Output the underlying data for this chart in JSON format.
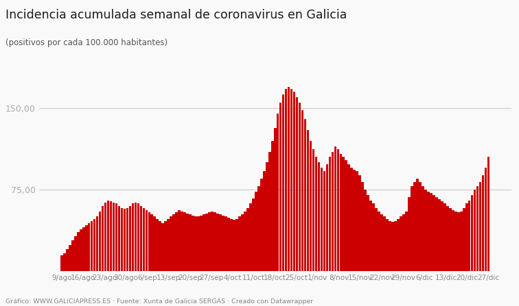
{
  "title": "Incidencia acumulada semanal de coronavirus en Galicia",
  "subtitle": "(positivos por cada 100.000 habitantes)",
  "footer": "Gráfico: WWW.GALICIAPRESS.ES · Fuente: Xunta de Galicia SERGAS · Creado con Datawrapper",
  "bar_color": "#cc0000",
  "background_color": "#f9f9f9",
  "ylim": [
    0,
    185
  ],
  "yticks": [
    75.0,
    150.0
  ],
  "tick_labels": [
    "9/ago",
    "16/ago",
    "23/ago",
    "30/ago",
    "6/sep",
    "13/sep",
    "20/sep",
    "27/sep",
    "4/oct",
    "11/oct",
    "18/oct",
    "25/oct",
    "1/nov",
    "8/nov",
    "15/nov",
    "22/nov",
    "29/nov",
    "6/dic",
    "13/dic",
    "20/dic",
    "27/dic"
  ],
  "values": [
    14,
    16,
    20,
    24,
    28,
    32,
    36,
    38,
    40,
    42,
    44,
    46,
    48,
    50,
    55,
    60,
    63,
    65,
    64,
    63,
    62,
    60,
    58,
    57,
    58,
    60,
    62,
    63,
    62,
    60,
    58,
    56,
    54,
    52,
    50,
    48,
    46,
    44,
    46,
    48,
    50,
    52,
    54,
    56,
    55,
    54,
    53,
    52,
    51,
    50,
    50,
    51,
    52,
    53,
    54,
    55,
    54,
    53,
    52,
    51,
    50,
    49,
    48,
    47,
    48,
    50,
    52,
    55,
    58,
    62,
    67,
    73,
    78,
    85,
    92,
    100,
    110,
    120,
    132,
    145,
    155,
    163,
    168,
    170,
    168,
    165,
    160,
    155,
    148,
    140,
    130,
    120,
    112,
    105,
    100,
    95,
    92,
    98,
    105,
    110,
    115,
    112,
    108,
    105,
    102,
    98,
    95,
    93,
    92,
    88,
    82,
    75,
    70,
    65,
    62,
    58,
    55,
    52,
    50,
    48,
    46,
    45,
    46,
    48,
    50,
    52,
    55,
    68,
    78,
    82,
    85,
    82,
    78,
    75,
    73,
    72,
    70,
    68,
    66,
    64,
    62,
    60,
    58,
    56,
    55,
    54,
    55,
    58,
    62,
    65,
    70,
    75,
    78,
    82,
    88,
    95,
    105
  ]
}
